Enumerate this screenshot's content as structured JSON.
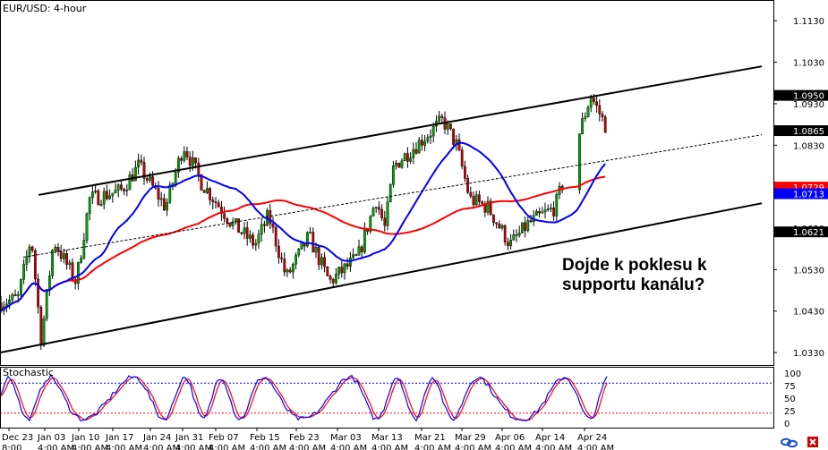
{
  "chart_data": [
    {
      "type": "line",
      "title": "EUR/USD: 4-hour",
      "subtype": "candlestick",
      "ylim": [
        1.03,
        1.118
      ],
      "y_ticks": [
        "1.1130",
        "1.1030",
        "1.0930",
        "1.0830",
        "1.0730",
        "1.0630",
        "1.0530",
        "1.0430",
        "1.0330"
      ],
      "x_labels": [
        "Dec 23",
        "Jan 03",
        "Jan 10",
        "Jan 17",
        "Jan 24",
        "Jan 31",
        "Feb 07",
        "Feb 15",
        "Feb 23",
        "Mar 03",
        "Mar 13",
        "Mar 21",
        "Mar 29",
        "Apr 06",
        "Apr 14",
        "Apr 24"
      ],
      "time_labels": [
        "8:00",
        "4:00 AM",
        "4:00 AM",
        "4:00 AM",
        "4:00 AM",
        "4:00 AM",
        "4:00 AM",
        "4:00 AM",
        "4:00 AM",
        "4:00 AM",
        "4:00 AM",
        "4:00 AM",
        "4:00 AM",
        "4:00 AM",
        "4:00 AM",
        "4:00 AM"
      ],
      "price_markers": [
        {
          "label": "1.0950",
          "value": 1.095,
          "bg": "#000000",
          "fg": "#ffffff"
        },
        {
          "label": "1.0865",
          "value": 1.0865,
          "bg": "#000000",
          "fg": "#ffffff"
        },
        {
          "label": "1.0729",
          "value": 1.0729,
          "bg": "#ff0000",
          "fg": "#ffffff"
        },
        {
          "label": "1.0713",
          "value": 1.0713,
          "bg": "#0000ff",
          "fg": "#ffffff"
        },
        {
          "label": "1.0621",
          "value": 1.0621,
          "bg": "#000000",
          "fg": "#ffffff"
        }
      ],
      "channel_upper": [
        [
          0.05,
          1.071
        ],
        [
          0.985,
          1.102
        ]
      ],
      "channel_lower": [
        [
          0.0,
          1.033
        ],
        [
          0.985,
          1.069
        ]
      ],
      "channel_mid": [
        [
          0.03,
          1.056
        ],
        [
          0.985,
          1.0855
        ]
      ],
      "annotation": [
        "Dojde k poklesu k",
        "supportu kanálu?"
      ],
      "colors": {
        "bull": "#00a000",
        "bear": "#c00000",
        "ma_fast": "#0000ff",
        "ma_slow": "#ff0000"
      }
    },
    {
      "type": "line",
      "title": "Stochastic",
      "ylim": [
        0,
        100
      ],
      "y_ticks": [
        "100",
        "75",
        "50",
        "25",
        "0"
      ],
      "levels": [
        80,
        20
      ],
      "colors": {
        "k": "#0000ff",
        "d": "#ff0000",
        "levels": "#0000ff"
      }
    }
  ]
}
